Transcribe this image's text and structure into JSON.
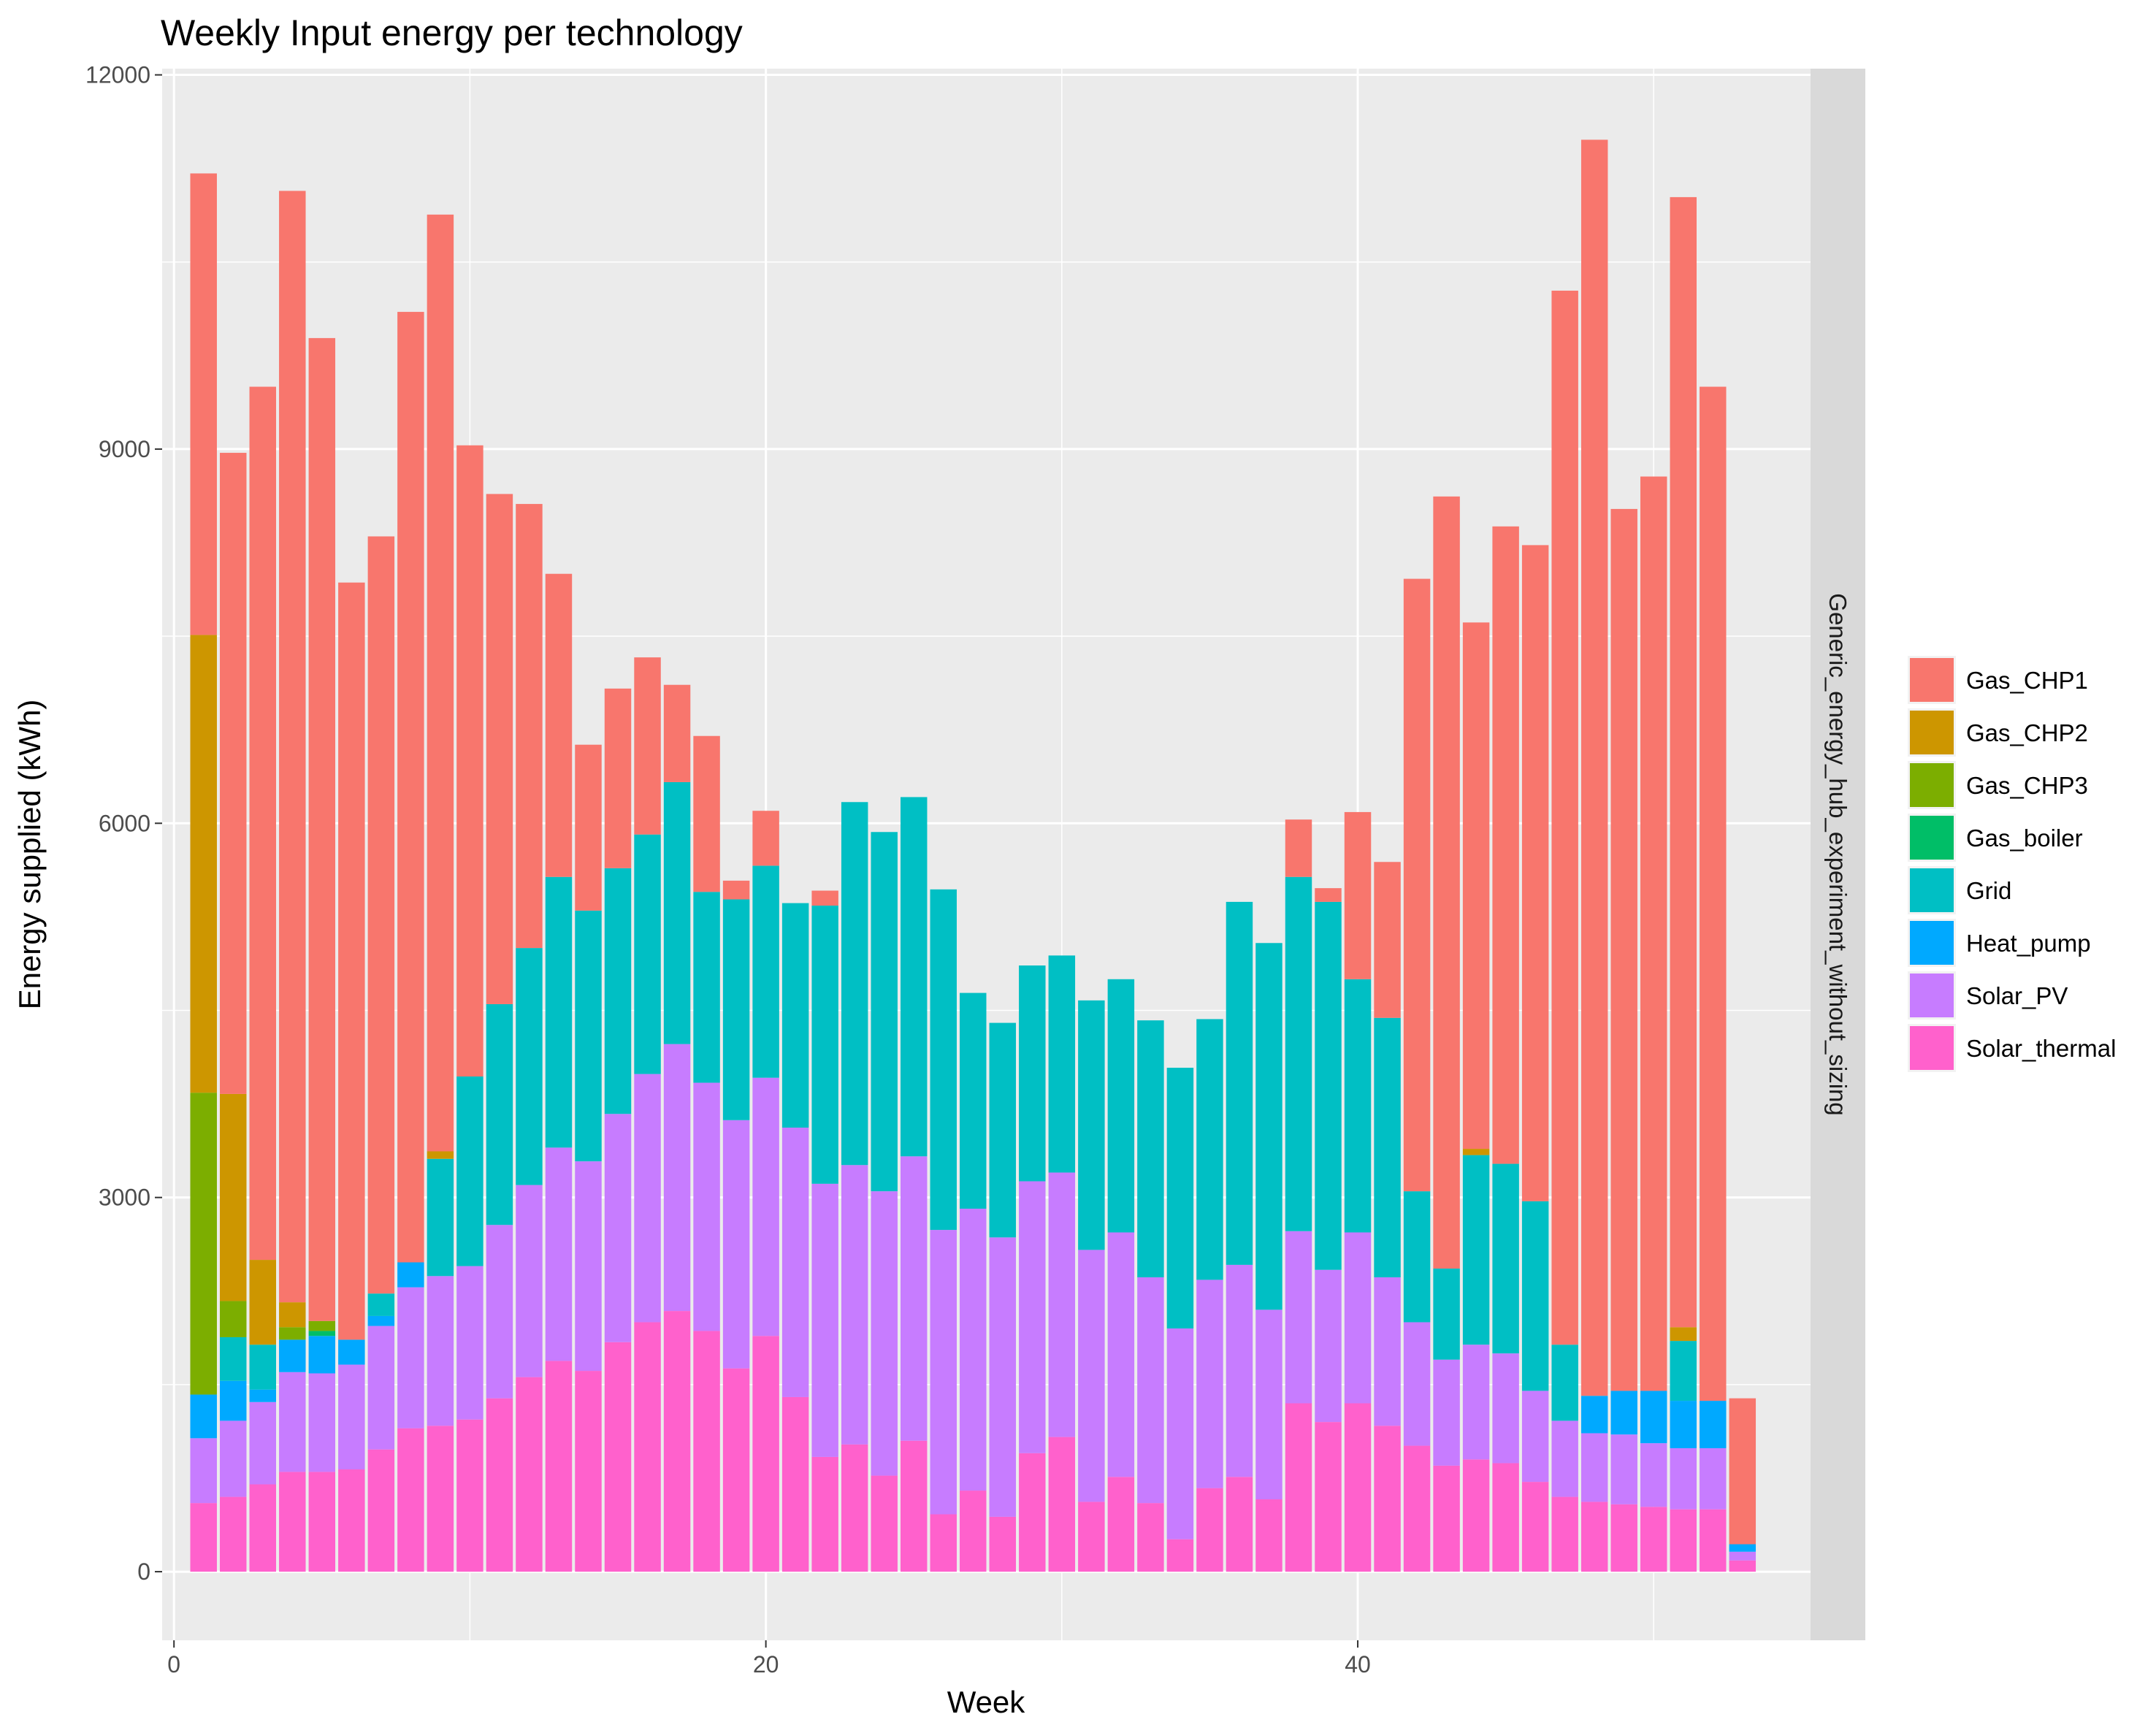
{
  "chart_data": {
    "type": "bar",
    "stacked": true,
    "title": "Weekly Input energy per technology",
    "xlabel": "Week",
    "ylabel": "Energy supplied (kWh)",
    "xlim": [
      -0.4,
      55.3
    ],
    "ylim": [
      -550,
      12050
    ],
    "x_ticks": [
      0,
      20,
      40
    ],
    "x_tick_labels": [
      "0",
      "20",
      "40"
    ],
    "y_ticks": [
      0,
      3000,
      6000,
      9000,
      12000
    ],
    "y_tick_labels": [
      "0",
      "3000",
      "6000",
      "9000",
      "12000"
    ],
    "facet_label": "Generic_energy_hub_experiment_without_sizing",
    "legend_position": "right",
    "grid": true,
    "weeks": [
      1,
      2,
      3,
      4,
      5,
      6,
      7,
      8,
      9,
      10,
      11,
      12,
      13,
      14,
      15,
      16,
      17,
      18,
      19,
      20,
      21,
      22,
      23,
      24,
      25,
      26,
      27,
      28,
      29,
      30,
      31,
      32,
      33,
      34,
      35,
      36,
      37,
      38,
      39,
      40,
      41,
      42,
      43,
      44,
      45,
      46,
      47,
      48,
      49,
      50,
      51,
      52,
      53
    ],
    "series": [
      {
        "name": "Solar_thermal",
        "color": "#FF61CC",
        "values": [
          550,
          600,
          700,
          800,
          800,
          820,
          980,
          1150,
          1170,
          1220,
          1390,
          1560,
          1690,
          1610,
          1840,
          2000,
          2090,
          1930,
          1630,
          1890,
          1400,
          920,
          1020,
          770,
          1050,
          460,
          650,
          440,
          950,
          1080,
          560,
          760,
          550,
          260,
          670,
          760,
          580,
          1350,
          1200,
          1350,
          1170,
          1010,
          850,
          900,
          870,
          720,
          600,
          560,
          540,
          520,
          500,
          500,
          90
        ]
      },
      {
        "name": "Solar_PV",
        "color": "#C77CFF",
        "values": [
          520,
          610,
          660,
          800,
          790,
          840,
          990,
          1130,
          1200,
          1230,
          1390,
          1540,
          1710,
          1680,
          1830,
          1990,
          2140,
          1990,
          1990,
          2070,
          2160,
          2190,
          2240,
          2280,
          2280,
          2280,
          2260,
          2240,
          2180,
          2120,
          2020,
          1960,
          1810,
          1690,
          1670,
          1700,
          1520,
          1380,
          1220,
          1370,
          1190,
          990,
          850,
          920,
          880,
          730,
          610,
          550,
          560,
          510,
          490,
          490,
          70
        ]
      },
      {
        "name": "Heat_pump",
        "color": "#00A9FF",
        "values": [
          350,
          320,
          100,
          260,
          300,
          200,
          80,
          200,
          0,
          0,
          0,
          0,
          0,
          0,
          0,
          0,
          0,
          0,
          0,
          0,
          0,
          0,
          0,
          0,
          0,
          0,
          0,
          0,
          0,
          0,
          0,
          0,
          0,
          0,
          0,
          0,
          0,
          0,
          0,
          0,
          0,
          0,
          0,
          0,
          0,
          0,
          0,
          300,
          350,
          420,
          380,
          380,
          60
        ]
      },
      {
        "name": "Grid",
        "color": "#00BFC4",
        "values": [
          0,
          350,
          360,
          0,
          0,
          0,
          180,
          0,
          940,
          1520,
          1770,
          1900,
          2170,
          2010,
          1970,
          1920,
          2100,
          1530,
          1770,
          1700,
          1800,
          2230,
          2910,
          2880,
          2880,
          2730,
          1730,
          1720,
          1730,
          1740,
          2000,
          2030,
          2060,
          2090,
          2090,
          2910,
          2940,
          2840,
          2950,
          2030,
          2080,
          1050,
          730,
          1520,
          1520,
          1520,
          610,
          0,
          0,
          0,
          480,
          0,
          0
        ]
      },
      {
        "name": "Gas_boiler",
        "color": "#00BE67",
        "values": [
          0,
          0,
          0,
          0,
          40,
          0,
          0,
          0,
          0,
          0,
          0,
          0,
          0,
          0,
          0,
          0,
          0,
          0,
          0,
          0,
          0,
          0,
          0,
          0,
          0,
          0,
          0,
          0,
          0,
          0,
          0,
          0,
          0,
          0,
          0,
          0,
          0,
          0,
          0,
          0,
          0,
          0,
          0,
          0,
          0,
          0,
          0,
          0,
          0,
          0,
          0,
          0,
          0
        ]
      },
      {
        "name": "Gas_CHP3",
        "color": "#7CAE00",
        "values": [
          2420,
          290,
          0,
          100,
          80,
          0,
          0,
          0,
          0,
          0,
          0,
          0,
          0,
          0,
          0,
          0,
          0,
          0,
          0,
          0,
          0,
          0,
          0,
          0,
          0,
          0,
          0,
          0,
          0,
          0,
          0,
          0,
          0,
          0,
          0,
          0,
          0,
          0,
          0,
          0,
          0,
          0,
          0,
          0,
          0,
          0,
          0,
          0,
          0,
          0,
          0,
          0,
          0
        ]
      },
      {
        "name": "Gas_CHP2",
        "color": "#CD9600",
        "values": [
          3670,
          1660,
          680,
          200,
          0,
          0,
          0,
          0,
          60,
          0,
          0,
          0,
          0,
          0,
          0,
          0,
          0,
          0,
          0,
          0,
          0,
          0,
          0,
          0,
          0,
          0,
          0,
          0,
          0,
          0,
          0,
          0,
          0,
          0,
          0,
          0,
          0,
          0,
          0,
          0,
          0,
          0,
          0,
          50,
          0,
          0,
          0,
          0,
          0,
          0,
          110,
          0,
          0
        ]
      },
      {
        "name": "Gas_CHP1",
        "color": "#F8766D",
        "values": [
          3700,
          5140,
          7000,
          8910,
          7880,
          6070,
          6070,
          7620,
          7510,
          5060,
          4090,
          3560,
          2430,
          1330,
          1440,
          1420,
          780,
          1250,
          150,
          440,
          0,
          120,
          0,
          0,
          0,
          0,
          0,
          0,
          0,
          0,
          0,
          0,
          0,
          0,
          0,
          0,
          0,
          460,
          110,
          1340,
          1250,
          4910,
          6190,
          4220,
          5110,
          5260,
          8450,
          10070,
          7070,
          7330,
          9060,
          8130,
          1170
        ]
      }
    ],
    "legend_order": [
      "Gas_CHP1",
      "Gas_CHP2",
      "Gas_CHP3",
      "Gas_boiler",
      "Grid",
      "Heat_pump",
      "Solar_PV",
      "Solar_thermal"
    ]
  }
}
